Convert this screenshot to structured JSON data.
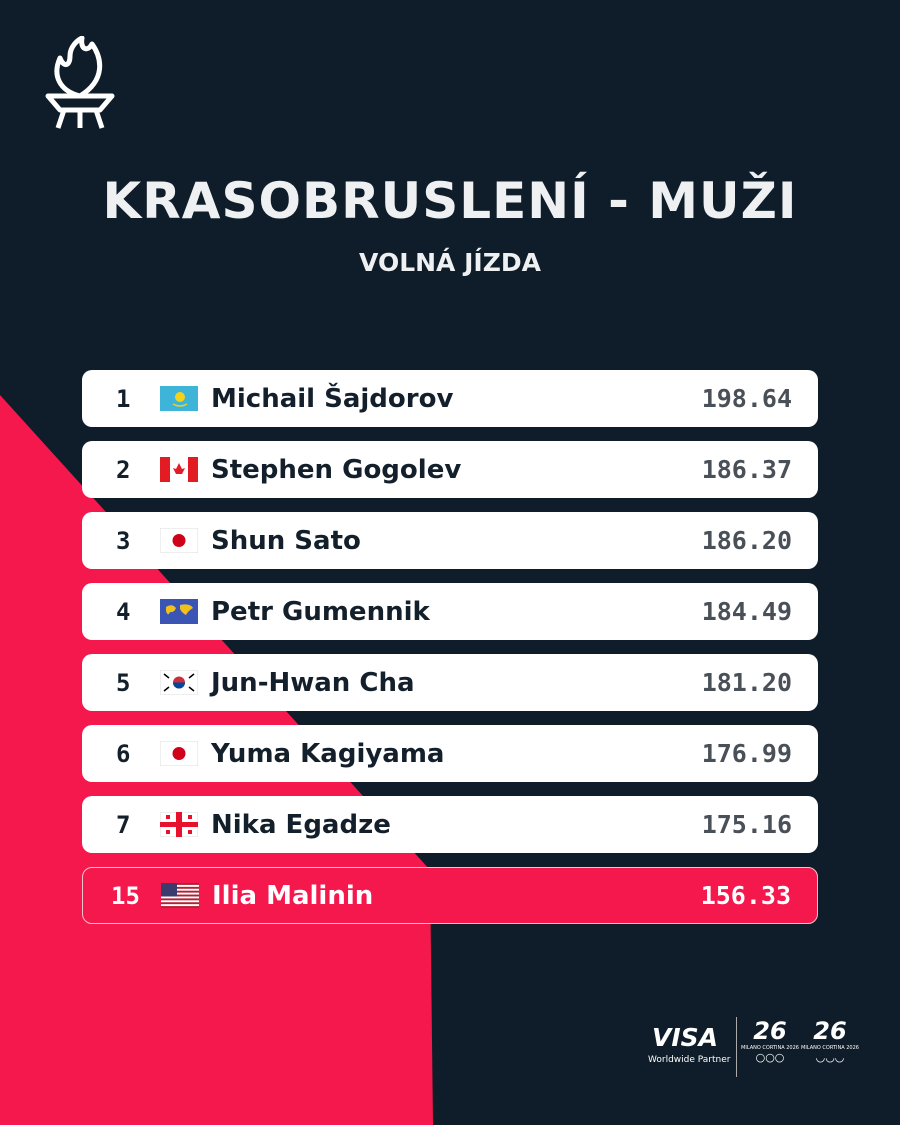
{
  "header": {
    "title": "KRASOBRUSLENÍ - MUŽI",
    "subtitle": "VOLNÁ JÍZDA"
  },
  "colors": {
    "background": "#0e1d29",
    "accent": "#f5184d",
    "row": "#ffffff"
  },
  "results": [
    {
      "rank": "1",
      "flag": "kazakhstan",
      "name": "Michail Šajdorov",
      "score": "198.64"
    },
    {
      "rank": "2",
      "flag": "canada",
      "name": "Stephen Gogolev",
      "score": "186.37"
    },
    {
      "rank": "3",
      "flag": "japan",
      "name": "Shun Sato",
      "score": "186.20"
    },
    {
      "rank": "4",
      "flag": "individual-neutral-athletes",
      "name": "Petr Gumennik",
      "score": "184.49"
    },
    {
      "rank": "5",
      "flag": "south-korea",
      "name": "Jun-Hwan Cha",
      "score": "181.20"
    },
    {
      "rank": "6",
      "flag": "japan",
      "name": "Yuma Kagiyama",
      "score": "176.99"
    },
    {
      "rank": "7",
      "flag": "georgia",
      "name": "Nika Egadze",
      "score": "175.16"
    },
    {
      "rank": "15",
      "flag": "usa",
      "name": "Ilia Malinin",
      "score": "156.33",
      "highlighted": true
    }
  ],
  "footer": {
    "sponsor": "VISA",
    "sponsor_tagline": "Worldwide Partner",
    "games_mark": "26",
    "games_name": "MILANO CORTINA 2026"
  }
}
